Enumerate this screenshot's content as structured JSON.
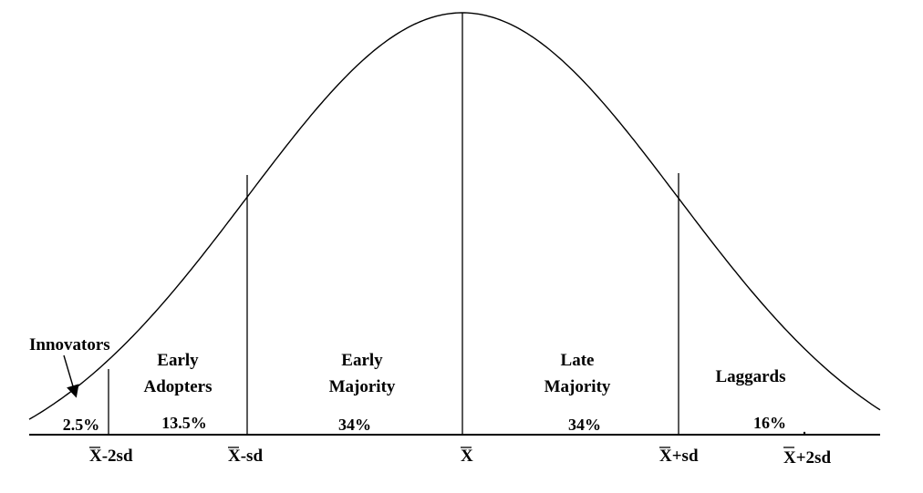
{
  "diagram": {
    "type": "bell-curve",
    "colors": {
      "line": "#000000",
      "background": "#ffffff"
    },
    "segments": [
      {
        "id": "innovators",
        "label": [
          "Innovators"
        ],
        "percent": "2.5%"
      },
      {
        "id": "early-adopters",
        "label": [
          "Early",
          "Adopters"
        ],
        "percent": "13.5%"
      },
      {
        "id": "early-majority",
        "label": [
          "Early",
          "Majority"
        ],
        "percent": "34%"
      },
      {
        "id": "late-majority",
        "label": [
          "Late",
          "Majority"
        ],
        "percent": "34%"
      },
      {
        "id": "laggards",
        "label": [
          "Laggards"
        ],
        "percent": "16%"
      }
    ],
    "axis_ticks": [
      {
        "id": "mean-minus-2sd",
        "bar": "X",
        "suffix": "-2sd"
      },
      {
        "id": "mean-minus-sd",
        "bar": "X",
        "suffix": "-sd"
      },
      {
        "id": "mean",
        "bar": "X",
        "suffix": ""
      },
      {
        "id": "mean-plus-sd",
        "bar": "X",
        "suffix": "+sd"
      },
      {
        "id": "mean-plus-2sd",
        "bar": "X",
        "suffix": "+2sd"
      }
    ]
  }
}
